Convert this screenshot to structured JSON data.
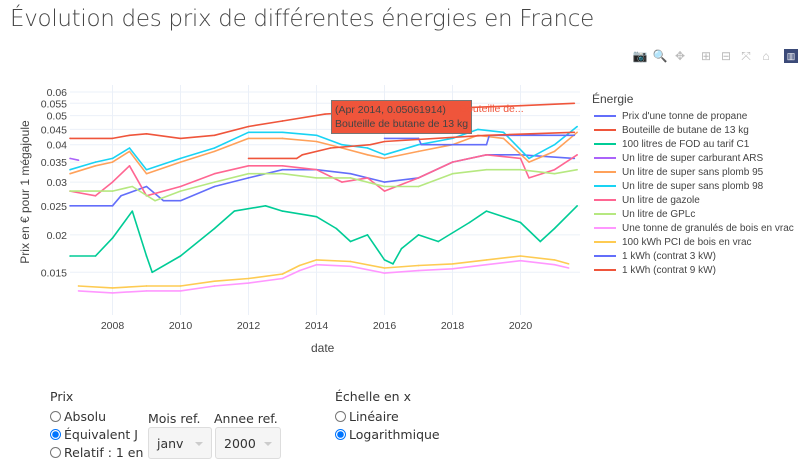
{
  "title": "Évolution des prix de différentes énergies en France",
  "modebar": [
    "camera-icon",
    "zoom-icon",
    "pan-icon",
    "zoom-in-icon",
    "zoom-out-icon",
    "autoscale-icon",
    "home-icon",
    "plotly-logo-icon"
  ],
  "tooltip": {
    "line1": "(Apr 2014, 0.05061914)",
    "line2": "Bouteille de butane de 13 kg",
    "name": "Bouteille de..."
  },
  "chart_data": {
    "type": "line",
    "xlabel": "date",
    "ylabel": "Prix en € pour 1 mégajoule",
    "y_scale": "log",
    "xlim": [
      "2006-10",
      "2021-10"
    ],
    "ylim": [
      0.0108,
      0.0633
    ],
    "x_ticks": [
      "2008",
      "2010",
      "2012",
      "2014",
      "2016",
      "2018",
      "2020"
    ],
    "y_ticks": [
      "0.015",
      "0.02",
      "0.025",
      "0.03",
      "0.035",
      "0.04",
      "0.045",
      "0.05",
      "0.055",
      "0.06"
    ],
    "grid": true,
    "legend_title": "Énergie",
    "legend_position": "right",
    "series": [
      {
        "name": "Prix d'une tonne de propane",
        "color": "#636efa",
        "points": [
          [
            "2006-10",
            0.025
          ],
          [
            "2008-01",
            0.025
          ],
          [
            "2008-04",
            0.027
          ],
          [
            "2009-01",
            0.029
          ],
          [
            "2009-07",
            0.026
          ],
          [
            "2010-01",
            0.026
          ],
          [
            "2011-01",
            0.029
          ],
          [
            "2012-01",
            0.031
          ],
          [
            "2013-01",
            0.033
          ],
          [
            "2014-01",
            0.033
          ],
          [
            "2015-01",
            0.032
          ],
          [
            "2016-01",
            0.03
          ],
          [
            "2017-01",
            0.031
          ],
          [
            "2018-01",
            0.035
          ],
          [
            "2019-01",
            0.037
          ],
          [
            "2020-01",
            0.037
          ],
          [
            "2021-08",
            0.036
          ]
        ]
      },
      {
        "name": "Bouteille de butane de 13 kg",
        "color": "#EF553B",
        "points": [
          [
            "2006-10",
            0.042
          ],
          [
            "2008-01",
            0.042
          ],
          [
            "2008-07",
            0.043
          ],
          [
            "2009-01",
            0.0435
          ],
          [
            "2010-01",
            0.042
          ],
          [
            "2011-01",
            0.043
          ],
          [
            "2012-01",
            0.046
          ],
          [
            "2013-01",
            0.048
          ],
          [
            "2014-04",
            0.0506
          ],
          [
            "2016-01",
            0.052
          ],
          [
            "2018-01",
            0.053
          ],
          [
            "2020-01",
            0.054
          ],
          [
            "2021-08",
            0.055
          ]
        ]
      },
      {
        "name": "100 litres de FOD au tarif C1",
        "color": "#00cc96",
        "points": [
          [
            "2006-10",
            0.017
          ],
          [
            "2007-07",
            0.017
          ],
          [
            "2008-01",
            0.0195
          ],
          [
            "2008-08",
            0.024
          ],
          [
            "2009-01",
            0.017
          ],
          [
            "2009-03",
            0.015
          ],
          [
            "2010-01",
            0.017
          ],
          [
            "2011-01",
            0.021
          ],
          [
            "2011-08",
            0.024
          ],
          [
            "2012-07",
            0.025
          ],
          [
            "2013-01",
            0.024
          ],
          [
            "2014-01",
            0.023
          ],
          [
            "2014-08",
            0.021
          ],
          [
            "2015-01",
            0.019
          ],
          [
            "2015-07",
            0.02
          ],
          [
            "2016-01",
            0.0165
          ],
          [
            "2016-04",
            0.016
          ],
          [
            "2016-07",
            0.018
          ],
          [
            "2017-01",
            0.02
          ],
          [
            "2017-08",
            0.019
          ],
          [
            "2018-07",
            0.022
          ],
          [
            "2019-01",
            0.024
          ],
          [
            "2019-07",
            0.023
          ],
          [
            "2020-01",
            0.022
          ],
          [
            "2020-08",
            0.019
          ],
          [
            "2021-01",
            0.021
          ],
          [
            "2021-09",
            0.025
          ]
        ]
      },
      {
        "name": "Un litre de super carburant ARS",
        "color": "#ab63fa",
        "points": [
          [
            "2006-10",
            0.036
          ],
          [
            "2007-01",
            0.0355
          ]
        ]
      },
      {
        "name": "Un litre de super sans plomb 95",
        "color": "#FFA15A",
        "points": [
          [
            "2006-10",
            0.032
          ],
          [
            "2007-07",
            0.034
          ],
          [
            "2008-01",
            0.035
          ],
          [
            "2008-07",
            0.038
          ],
          [
            "2009-01",
            0.032
          ],
          [
            "2010-01",
            0.035
          ],
          [
            "2011-01",
            0.038
          ],
          [
            "2012-01",
            0.042
          ],
          [
            "2013-01",
            0.042
          ],
          [
            "2014-01",
            0.041
          ],
          [
            "2014-10",
            0.039
          ],
          [
            "2015-07",
            0.037
          ],
          [
            "2016-01",
            0.036
          ],
          [
            "2017-01",
            0.038
          ],
          [
            "2018-01",
            0.04
          ],
          [
            "2018-10",
            0.043
          ],
          [
            "2019-07",
            0.042
          ],
          [
            "2020-04",
            0.035
          ],
          [
            "2021-01",
            0.038
          ],
          [
            "2021-09",
            0.044
          ]
        ]
      },
      {
        "name": "Un litre de super sans plomb 98",
        "color": "#19d3f3",
        "points": [
          [
            "2006-10",
            0.033
          ],
          [
            "2007-07",
            0.035
          ],
          [
            "2008-01",
            0.036
          ],
          [
            "2008-07",
            0.039
          ],
          [
            "2009-01",
            0.033
          ],
          [
            "2010-01",
            0.036
          ],
          [
            "2011-01",
            0.039
          ],
          [
            "2012-01",
            0.044
          ],
          [
            "2013-01",
            0.044
          ],
          [
            "2014-01",
            0.043
          ],
          [
            "2014-10",
            0.04
          ],
          [
            "2015-07",
            0.039
          ],
          [
            "2016-01",
            0.037
          ],
          [
            "2017-01",
            0.04
          ],
          [
            "2018-01",
            0.042
          ],
          [
            "2018-10",
            0.045
          ],
          [
            "2019-07",
            0.044
          ],
          [
            "2020-04",
            0.036
          ],
          [
            "2021-01",
            0.04
          ],
          [
            "2021-09",
            0.046
          ]
        ]
      },
      {
        "name": "Un litre de gazole",
        "color": "#FF6692",
        "points": [
          [
            "2006-10",
            0.028
          ],
          [
            "2007-07",
            0.027
          ],
          [
            "2008-01",
            0.03
          ],
          [
            "2008-07",
            0.034
          ],
          [
            "2009-01",
            0.027
          ],
          [
            "2010-01",
            0.029
          ],
          [
            "2011-01",
            0.032
          ],
          [
            "2012-01",
            0.034
          ],
          [
            "2013-01",
            0.034
          ],
          [
            "2014-01",
            0.033
          ],
          [
            "2014-10",
            0.03
          ],
          [
            "2015-07",
            0.031
          ],
          [
            "2016-01",
            0.028
          ],
          [
            "2017-01",
            0.031
          ],
          [
            "2018-01",
            0.035
          ],
          [
            "2019-01",
            0.037
          ],
          [
            "2020-01",
            0.036
          ],
          [
            "2020-04",
            0.031
          ],
          [
            "2021-01",
            0.033
          ],
          [
            "2021-09",
            0.037
          ]
        ]
      },
      {
        "name": "Un litre de GPLc",
        "color": "#B6E880",
        "points": [
          [
            "2006-10",
            0.028
          ],
          [
            "2008-01",
            0.028
          ],
          [
            "2008-08",
            0.029
          ],
          [
            "2009-04",
            0.026
          ],
          [
            "2010-01",
            0.028
          ],
          [
            "2011-01",
            0.03
          ],
          [
            "2012-01",
            0.032
          ],
          [
            "2013-01",
            0.032
          ],
          [
            "2014-01",
            0.031
          ],
          [
            "2015-01",
            0.031
          ],
          [
            "2016-01",
            0.029
          ],
          [
            "2017-01",
            0.029
          ],
          [
            "2018-01",
            0.032
          ],
          [
            "2019-01",
            0.033
          ],
          [
            "2020-01",
            0.033
          ],
          [
            "2021-01",
            0.032
          ],
          [
            "2021-09",
            0.033
          ]
        ]
      },
      {
        "name": "Une tonne de granulés de bois en vrac",
        "color": "#FF97FF",
        "points": [
          [
            "2007-01",
            0.013
          ],
          [
            "2008-01",
            0.0128
          ],
          [
            "2009-01",
            0.013
          ],
          [
            "2010-01",
            0.013
          ],
          [
            "2011-01",
            0.0135
          ],
          [
            "2012-01",
            0.0138
          ],
          [
            "2013-01",
            0.0143
          ],
          [
            "2013-07",
            0.0152
          ],
          [
            "2014-01",
            0.0159
          ],
          [
            "2015-01",
            0.0157
          ],
          [
            "2016-01",
            0.0149
          ],
          [
            "2017-01",
            0.0152
          ],
          [
            "2018-01",
            0.0154
          ],
          [
            "2019-01",
            0.0159
          ],
          [
            "2020-01",
            0.0164
          ],
          [
            "2021-01",
            0.0159
          ],
          [
            "2021-06",
            0.0155
          ]
        ]
      },
      {
        "name": "100 kWh PCI de bois en vrac",
        "color": "#FECB52",
        "points": [
          [
            "2007-01",
            0.0135
          ],
          [
            "2008-01",
            0.0133
          ],
          [
            "2009-01",
            0.0135
          ],
          [
            "2010-01",
            0.0135
          ],
          [
            "2011-01",
            0.014
          ],
          [
            "2012-01",
            0.0143
          ],
          [
            "2013-01",
            0.0148
          ],
          [
            "2013-07",
            0.0158
          ],
          [
            "2014-01",
            0.0165
          ],
          [
            "2015-01",
            0.0163
          ],
          [
            "2016-01",
            0.0155
          ],
          [
            "2017-01",
            0.0158
          ],
          [
            "2018-01",
            0.016
          ],
          [
            "2019-01",
            0.0165
          ],
          [
            "2020-01",
            0.017
          ],
          [
            "2021-01",
            0.0165
          ],
          [
            "2021-06",
            0.016
          ]
        ]
      },
      {
        "name": "1 kWh (contrat 3 kW)",
        "color": "#636efa",
        "points": [
          [
            "2016-01",
            0.042
          ],
          [
            "2017-01",
            0.042
          ],
          [
            "2017-02",
            0.04
          ],
          [
            "2019-01",
            0.04
          ],
          [
            "2019-02",
            0.043
          ],
          [
            "2021-08",
            0.043
          ]
        ]
      },
      {
        "name": "1 kWh (contrat 9 kW)",
        "color": "#EF553B",
        "points": [
          [
            "2012-01",
            0.036
          ],
          [
            "2013-06",
            0.036
          ],
          [
            "2013-08",
            0.037
          ],
          [
            "2014-06",
            0.039
          ],
          [
            "2015-08",
            0.04
          ],
          [
            "2016-01",
            0.041
          ],
          [
            "2019-01",
            0.043
          ],
          [
            "2021-08",
            0.044
          ]
        ]
      }
    ]
  },
  "controls": {
    "prix_label": "Prix",
    "prix_options": [
      {
        "label": "Absolu",
        "checked": false
      },
      {
        "label": "Équivalent J",
        "checked": true
      },
      {
        "label": "Relatif : 1 en",
        "checked": false
      }
    ],
    "mois_label": "Mois ref.",
    "mois_value": "janv",
    "annee_label": "Annee ref.",
    "annee_value": "2000",
    "echelle_label": "Échelle en x",
    "echelle_options": [
      {
        "label": "Linéaire",
        "checked": false
      },
      {
        "label": "Logarithmique",
        "checked": true
      }
    ]
  }
}
